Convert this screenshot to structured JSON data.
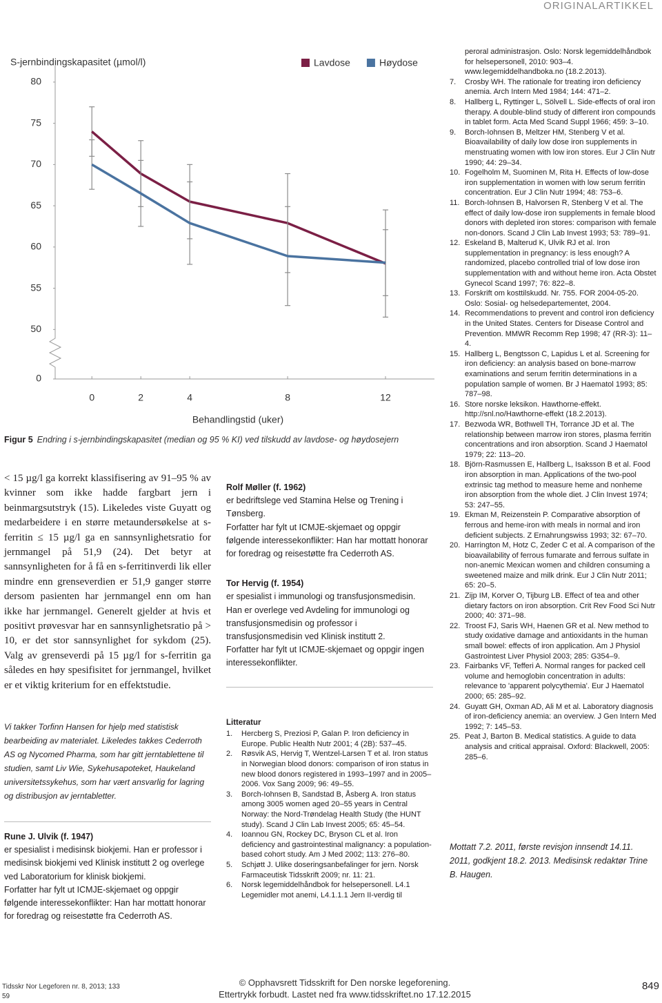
{
  "header": {
    "section": "ORIGINALARTIKKEL"
  },
  "chart_data": {
    "type": "line",
    "y_label": "S-jernbindingskapasitet (µmol/l)",
    "x_label": "Behandlingstid (uker)",
    "x": [
      0,
      2,
      4,
      8,
      12
    ],
    "series": [
      {
        "name": "Lavdose",
        "color": "#7b1f45",
        "values": [
          74.0,
          68.9,
          65.5,
          62.9,
          58.0
        ],
        "errors": [
          3.0,
          4.0,
          4.5,
          6.0,
          6.5
        ]
      },
      {
        "name": "Høydose",
        "color": "#4a73a0",
        "values": [
          70.0,
          66.5,
          62.9,
          58.9,
          58.1
        ],
        "errors": [
          3.0,
          4.0,
          5.0,
          6.0,
          4.0
        ]
      }
    ],
    "xlim": [
      -1.5,
      14
    ],
    "xticks": [
      0,
      2,
      4,
      8,
      12
    ],
    "ylim": [
      44,
      82
    ],
    "yticks": [
      0,
      50,
      55,
      60,
      65,
      70,
      75,
      80
    ],
    "axis_break": true,
    "grid": false,
    "legend": "top-right"
  },
  "figure_caption": {
    "label": "Figur 5",
    "text": "Endring i s-jernbindingskapasitet (median og 95 % KI) ved tilskudd av lavdose- og høydosejern"
  },
  "body_text": "< 15 µg/l ga korrekt klassifisering av 91–95 % av kvinner som ikke hadde fargbart jern i beinmargsutstryk (15). Likeledes viste Guyatt og medarbeidere i en større metaundersøkelse at s-ferritin ≤ 15 µg/l ga en sannsynlighetsratio for jernmangel på 51,9 (24). Det betyr at sannsynligheten for å få en s-ferritinverdi lik eller mindre enn grenseverdien er 51,9 ganger større dersom pasienten har jernmangel enn om han ikke har jernmangel. Generelt gjelder at hvis et positivt prøvesvar har en sannsynlighetsratio på > 10, er det stor sannsynlighet for sykdom (25). Valg av grenseverdi på 15 µg/l for s-ferritin ga således en høy spesifisitet for jernmangel, hvilket er et viktig kriterium for en effektstudie.",
  "acknowledgement": "Vi takker Torfinn Hansen for hjelp med statistisk bearbeiding av materialet. Likeledes takkes Cederroth AS og Nycomed Pharma, som har gitt jerntablettene til studien, samt Liv Wie, Sykehusapoteket, Haukeland universitetssykehus, som har vært ansvarlig for lagring og distribusjon av jerntabletter.",
  "authors": [
    {
      "name": "Rune J. Ulvik (f. 1947)",
      "bio": "er spesialist i medisinsk biokjemi. Han er professor i medisinsk biokjemi ved Klinisk institutt 2 og overlege ved Laboratorium for klinisk biokjemi.",
      "conflicts": "Forfatter har fylt ut ICMJE-skjemaet og oppgir følgende interessekonflikter: Han har mottatt honorar for foredrag og reisestøtte fra Cederroth AS."
    },
    {
      "name": "Rolf Møller (f. 1962)",
      "bio": "er bedriftslege ved Stamina Helse og Trening i Tønsberg.",
      "conflicts": "Forfatter har fylt ut ICMJE-skjemaet og oppgir følgende interessekonflikter: Han har mottatt honorar for foredrag og reisestøtte fra Cederroth AS."
    },
    {
      "name": "Tor Hervig (f. 1954)",
      "bio": "er spesialist i immunologi og transfusjonsmedisin. Han er overlege ved Avdeling for immunologi og transfusjonsmedisin og professor i transfusjonsmedisin ved Klinisk institutt 2.",
      "conflicts": "Forfatter har fylt ut ICMJE-skjemaet og oppgir ingen interessekonflikter."
    }
  ],
  "literature": {
    "heading": "Litteratur",
    "continuation": "peroral administrasjon. Oslo: Norsk legemiddelhåndbok for helsepersonell, 2010: 903–4. www.legemiddelhandboka.no (18.2.2013).",
    "references": [
      {
        "number": "1.",
        "text": "Hercberg S, Preziosi P, Galan P. Iron deficiency in Europe. Public Health Nutr 2001; 4 (2B): 537–45."
      },
      {
        "number": "2.",
        "text": "Røsvik AS, Hervig T, Wentzel-Larsen T et al. Iron status in Norwegian blood donors: comparison of iron status in new blood donors registered in 1993–1997 and in 2005–2006. Vox Sang 2009; 96: 49–55."
      },
      {
        "number": "3.",
        "text": "Borch-Iohnsen B, Sandstad B, Åsberg A. Iron status among 3005 women aged 20–55 years in Central Norway: the Nord-Trøndelag Health Study (the HUNT study). Scand J Clin Lab Invest 2005; 65: 45–54."
      },
      {
        "number": "4.",
        "text": "Ioannou GN, Rockey DC, Bryson CL et al. Iron deficiency and gastrointestinal malignancy: a population-based cohort study. Am J Med 2002; 113: 276–80."
      },
      {
        "number": "5.",
        "text": "Schjøtt J. Ulike doseringsanbefalinger for jern. Norsk Farmaceutisk Tidsskrift 2009; nr. 11: 21."
      },
      {
        "number": "6.",
        "text": "Norsk legemiddelhåndbok for helsepersonell. L4.1 Legemidler mot anemi, L4.1.1.1 Jern II-verdig til"
      },
      {
        "number": "7.",
        "text": "Crosby WH. The rationale for treating iron deficiency anemia. Arch Intern Med 1984; 144: 471–2."
      },
      {
        "number": "8.",
        "text": "Hallberg L, Ryttinger L, Sölvell L. Side-effects of oral iron therapy. A double-blind study of different iron compounds in tablet form. Acta Med Scand Suppl 1966; 459: 3–10."
      },
      {
        "number": "9.",
        "text": "Borch-Iohnsen B, Meltzer HM, Stenberg V et al. Bioavailability of daily low dose iron supplements in menstruating women with low iron stores. Eur J Clin Nutr 1990; 44: 29–34."
      },
      {
        "number": "10.",
        "text": "Fogelholm M, Suominen M, Rita H. Effects of low-dose iron supplementation in women with low serum ferritin concentration. Eur J Clin Nutr 1994; 48: 753–6."
      },
      {
        "number": "11.",
        "text": "Borch-Iohnsen B, Halvorsen R, Stenberg V et al. The effect of daily low-dose iron supplements in female blood donors with depleted iron stores: comparison with female non-donors. Scand J Clin Lab Invest 1993; 53: 789–91."
      },
      {
        "number": "12.",
        "text": "Eskeland B, Malterud K, Ulvik RJ et al. Iron supplementation in pregnancy: is less enough? A randomized, placebo controlled trial of low dose iron supplementation with and without heme iron. Acta Obstet Gynecol Scand 1997; 76: 822–8."
      },
      {
        "number": "13.",
        "text": "Forskrift om kosttilskudd. Nr. 755. FOR 2004-05-20. Oslo: Sosial- og helsedepartementet, 2004."
      },
      {
        "number": "14.",
        "text": "Recommendations to prevent and control iron deficiency in the United States. Centers for Disease Control and Prevention. MMWR Recomm Rep 1998; 47 (RR-3): 11–4."
      },
      {
        "number": "15.",
        "text": "Hallberg L, Bengtsson C, Lapidus L et al. Screening for iron deficiency: an analysis based on bone-marrow examinations and serum ferritin determinations in a population sample of women. Br J Haematol 1993; 85: 787–98."
      },
      {
        "number": "16.",
        "text": "Store norske leksikon. Hawthorne-effekt. http://snl.no/Hawthorne-effekt (18.2.2013)."
      },
      {
        "number": "17.",
        "text": "Bezwoda WR, Bothwell TH, Torrance JD et al. The relationship between marrow iron stores, plasma ferritin concentrations and iron absorption. Scand J Haematol 1979; 22: 113–20."
      },
      {
        "number": "18.",
        "text": "Björn-Rasmussen E, Hallberg L, Isaksson B et al. Food iron absorption in man. Applications of the two-pool extrinsic tag method to measure heme and nonheme iron absorption from the whole diet. J Clin Invest 1974; 53: 247–55."
      },
      {
        "number": "19.",
        "text": "Ekman M, Reizenstein P. Comparative absorption of ferrous and heme-iron with meals in normal and iron deficient subjects. Z Ernahrungswiss 1993; 32: 67–70."
      },
      {
        "number": "20.",
        "text": "Harrington M, Hotz C, Zeder C et al. A comparison of the bioavailability of ferrous fumarate and ferrous sulfate in non-anemic Mexican women and children consuming a sweetened maize and milk drink. Eur J Clin Nutr 2011; 65: 20–5."
      },
      {
        "number": "21.",
        "text": "Zijp IM, Korver O, Tijburg LB. Effect of tea and other dietary factors on iron absorption. Crit Rev Food Sci Nutr 2000; 40: 371–98."
      },
      {
        "number": "22.",
        "text": "Troost FJ, Saris WH, Haenen GR et al. New method to study oxidative damage and antioxidants in the human small bowel: effects of iron application. Am J Physiol Gastrointest Liver Physiol 2003; 285: G354–9."
      },
      {
        "number": "23.",
        "text": "Fairbanks VF, Tefferi A. Normal ranges for packed cell volume and hemoglobin concentration in adults: relevance to 'apparent polycythemia'. Eur J Haematol 2000; 65: 285–92."
      },
      {
        "number": "24.",
        "text": "Guyatt GH, Oxman AD, Ali M et al. Laboratory diagnosis of iron-deficiency anemia: an overview. J Gen Intern Med 1992; 7: 145–53."
      },
      {
        "number": "25.",
        "text": "Peat J, Barton B. Medical statistics. A guide to data analysis and critical appraisal. Oxford: Blackwell, 2005: 285–6."
      }
    ]
  },
  "received": "Mottatt 7.2. 2011, første revisjon innsendt 14.11. 2011, godkjent 18.2. 2013. Medisinsk redaktør Trine B. Haugen.",
  "footer": {
    "citation": "Tidsskr Nor Legeforen nr. 8, 2013; 133",
    "page_id": "59",
    "copyright": "© Opphavsrett Tidsskrift for Den norske legeforening.",
    "download": "Ettertrykk forbudt. Lastet ned fra www.tidsskriftet.no 17.12.2015",
    "page_number": "849"
  }
}
